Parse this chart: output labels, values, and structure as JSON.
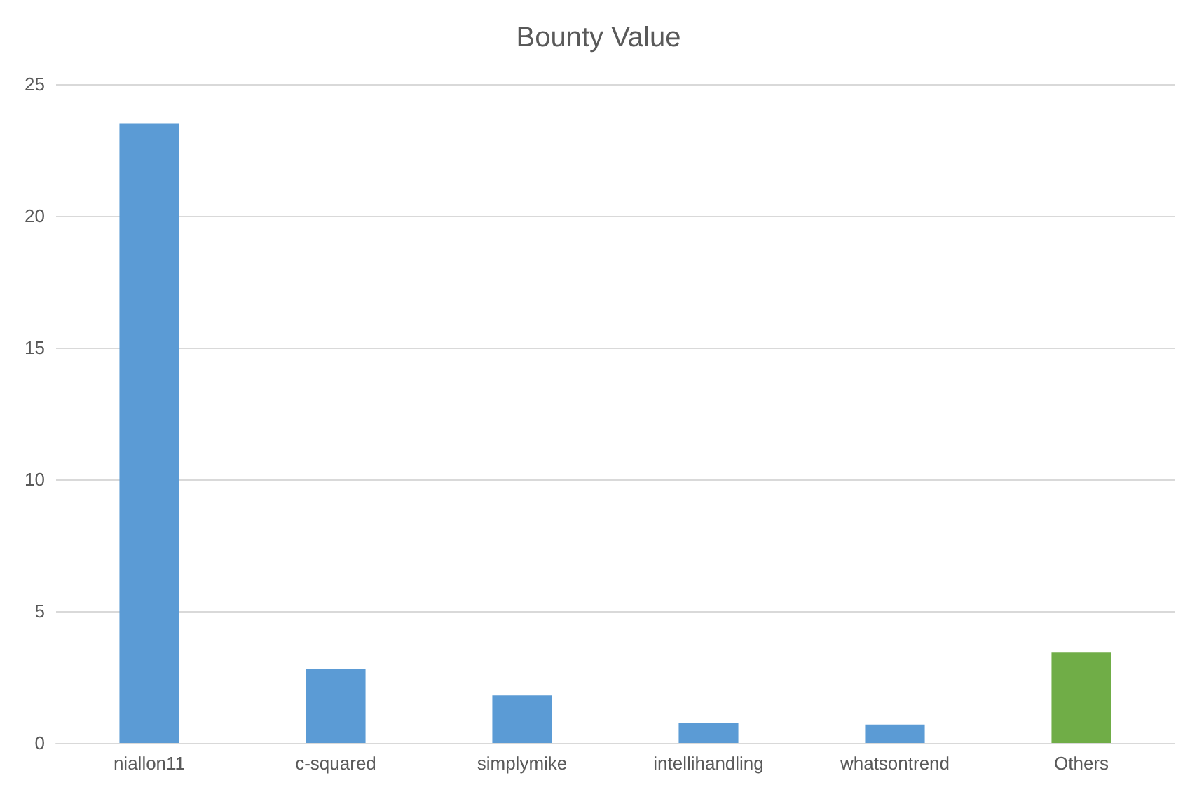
{
  "chart_data": {
    "type": "bar",
    "title": "Bounty Value",
    "categories": [
      "niallon11",
      "c-squared",
      "simplymike",
      "intellihandling",
      "whatsontrend",
      "Others"
    ],
    "values": [
      23.5,
      2.8,
      1.8,
      0.75,
      0.7,
      3.45
    ],
    "colors": [
      "#5b9bd5",
      "#5b9bd5",
      "#5b9bd5",
      "#5b9bd5",
      "#5b9bd5",
      "#70ad47"
    ],
    "ylim": [
      0,
      25
    ],
    "yticks": [
      0,
      5,
      10,
      15,
      20,
      25
    ],
    "grid": "y"
  }
}
